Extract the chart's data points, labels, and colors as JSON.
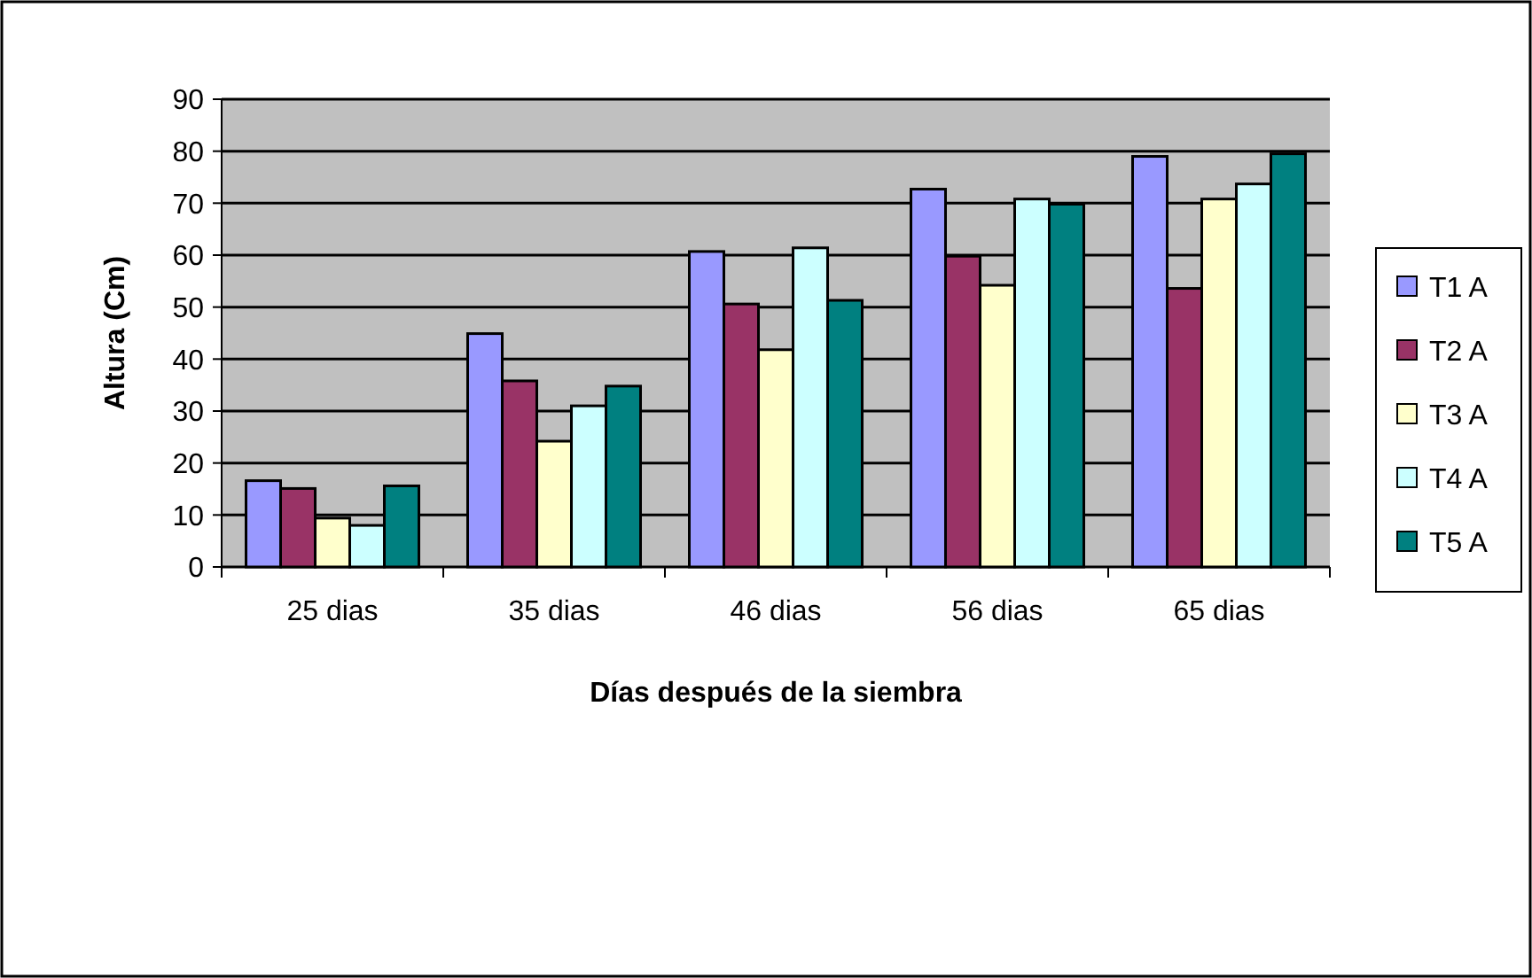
{
  "chart_data": {
    "type": "bar",
    "xlabel": "Días después de la siembra",
    "ylabel": "Altura (Cm)",
    "categories": [
      "25 dias",
      "35 dias",
      "46 dias",
      "56 dias",
      "65 dias"
    ],
    "series": [
      {
        "name": "T1 A",
        "color": "#9999ff",
        "values": [
          16.6,
          44.9,
          60.7,
          72.7,
          79.0
        ]
      },
      {
        "name": "T2 A",
        "color": "#993366",
        "values": [
          15.1,
          35.8,
          50.6,
          59.8,
          53.6
        ]
      },
      {
        "name": "T3 A",
        "color": "#ffffcc",
        "values": [
          9.4,
          24.2,
          41.8,
          54.2,
          70.8
        ]
      },
      {
        "name": "T4 A",
        "color": "#ccffff",
        "values": [
          8.0,
          31.0,
          61.4,
          70.8,
          73.7
        ]
      },
      {
        "name": "T5 A",
        "color": "#008080",
        "values": [
          15.6,
          34.8,
          51.3,
          69.8,
          79.5
        ]
      }
    ],
    "ylim": [
      0,
      90
    ],
    "yticks": [
      0,
      10,
      20,
      30,
      40,
      50,
      60,
      70,
      80,
      90
    ],
    "grid": "y",
    "legend": "right"
  }
}
